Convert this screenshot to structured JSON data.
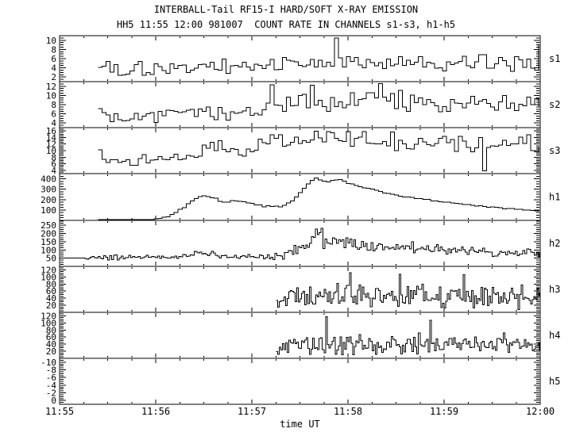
{
  "header": {
    "title": "INTERBALL-Tail RF15-I HARD/SOFT X-RAY EMISSION",
    "subtitle": "HH5 11:55 12:00 981007  COUNT RATE IN CHANNELS s1-s3, h1-h5"
  },
  "chart_data": {
    "type": "line",
    "title": "INTERBALL-Tail RF15-I HARD/SOFT X-RAY EMISSION",
    "subtitle": "HH5 11:55 12:00 981007  COUNT RATE IN CHANNELS s1-s3, h1-h5",
    "xlabel": "time UT",
    "x_tick_labels": [
      "11:55",
      "11:56",
      "11:57",
      "11:58",
      "11:59",
      "12:00"
    ],
    "x_range_seconds": [
      0,
      300
    ],
    "x_major_tick_s": 60,
    "x_minor_tick_s": 15,
    "grid": false,
    "line_color": "#000000",
    "background": "#ffffff",
    "panels": [
      {
        "label": "s1",
        "ylim": [
          1,
          11
        ],
        "ytick_values": [
          2,
          4,
          6,
          8,
          10
        ],
        "ytick_labels": [
          "2",
          "4",
          "6",
          "8",
          "10"
        ],
        "minor_step": 0.5,
        "seed": 101,
        "bin_s": 2.5,
        "start_s": 24,
        "mean_points": [
          [
            24,
            4.3
          ],
          [
            50,
            4.0
          ],
          [
            80,
            4.1
          ],
          [
            110,
            4.3
          ],
          [
            140,
            4.6
          ],
          [
            160,
            5.0
          ],
          [
            200,
            5.2
          ],
          [
            240,
            5.0
          ],
          [
            270,
            4.9
          ],
          [
            295,
            5.5
          ],
          [
            300,
            6.5
          ]
        ],
        "amp_points": [
          [
            24,
            1.5
          ],
          [
            150,
            1.6
          ],
          [
            300,
            1.8
          ]
        ],
        "spikes": [
          [
            172,
            10.5
          ],
          [
            298,
            9.0
          ]
        ]
      },
      {
        "label": "s2",
        "ylim": [
          3,
          13
        ],
        "ytick_values": [
          4,
          6,
          8,
          10,
          12
        ],
        "ytick_labels": [
          "4",
          "6",
          "8",
          "10",
          "12"
        ],
        "minor_step": 0.5,
        "seed": 202,
        "bin_s": 2.5,
        "start_s": 24,
        "mean_points": [
          [
            24,
            7.0
          ],
          [
            32,
            5.5
          ],
          [
            48,
            5.2
          ],
          [
            70,
            5.8
          ],
          [
            95,
            6.0
          ],
          [
            120,
            6.8
          ],
          [
            145,
            7.6
          ],
          [
            170,
            8.4
          ],
          [
            200,
            8.6
          ],
          [
            235,
            8.5
          ],
          [
            265,
            8.6
          ],
          [
            300,
            8.2
          ]
        ],
        "amp_points": [
          [
            24,
            1.3
          ],
          [
            120,
            1.6
          ],
          [
            160,
            1.9
          ],
          [
            300,
            1.9
          ]
        ],
        "spikes": [
          [
            132,
            12.3
          ],
          [
            156,
            12.2
          ],
          [
            198,
            12.6
          ]
        ]
      },
      {
        "label": "s3",
        "ylim": [
          3,
          17
        ],
        "ytick_values": [
          4,
          6,
          8,
          10,
          12,
          14,
          16
        ],
        "ytick_labels": [
          "4",
          "6",
          "8",
          "10",
          "12",
          "14",
          "16"
        ],
        "minor_step": 0.5,
        "seed": 303,
        "bin_s": 2.5,
        "start_s": 24,
        "mean_points": [
          [
            24,
            8.0
          ],
          [
            36,
            6.5
          ],
          [
            52,
            7.0
          ],
          [
            68,
            7.2
          ],
          [
            82,
            8.5
          ],
          [
            92,
            10.5
          ],
          [
            100,
            11.8
          ],
          [
            106,
            11.3
          ],
          [
            112,
            9.6
          ],
          [
            118,
            9.2
          ],
          [
            124,
            11.0
          ],
          [
            130,
            13.0
          ],
          [
            150,
            12.6
          ],
          [
            175,
            13.0
          ],
          [
            200,
            12.8
          ],
          [
            230,
            12.6
          ],
          [
            255,
            12.2
          ],
          [
            275,
            12.0
          ],
          [
            300,
            12.2
          ]
        ],
        "amp_points": [
          [
            24,
            2.2
          ],
          [
            88,
            1.8
          ],
          [
            112,
            2.0
          ],
          [
            128,
            2.4
          ],
          [
            300,
            2.6
          ]
        ],
        "spikes": [
          [
            265,
            3.8
          ]
        ]
      },
      {
        "label": "h1",
        "ylim": [
          0,
          450
        ],
        "ytick_values": [
          100,
          200,
          300,
          400
        ],
        "ytick_labels": [
          "100",
          "200",
          "300",
          "400"
        ],
        "minor_step": 25,
        "seed": 404,
        "bin_s": 2.5,
        "start_s": 24,
        "mean_points": [
          [
            24,
            3
          ],
          [
            50,
            4
          ],
          [
            55,
            6
          ],
          [
            60,
            15
          ],
          [
            65,
            30
          ],
          [
            70,
            60
          ],
          [
            75,
            110
          ],
          [
            80,
            170
          ],
          [
            83,
            205
          ],
          [
            86,
            228
          ],
          [
            90,
            235
          ],
          [
            95,
            215
          ],
          [
            100,
            185
          ],
          [
            103,
            180
          ],
          [
            107,
            190
          ],
          [
            111,
            190
          ],
          [
            116,
            170
          ],
          [
            121,
            150
          ],
          [
            126,
            140
          ],
          [
            131,
            135
          ],
          [
            136,
            135
          ],
          [
            139,
            145
          ],
          [
            142,
            165
          ],
          [
            145,
            200
          ],
          [
            148,
            245
          ],
          [
            151,
            295
          ],
          [
            154,
            345
          ],
          [
            156,
            380
          ],
          [
            158,
            408
          ],
          [
            161,
            398
          ],
          [
            164,
            375
          ],
          [
            167,
            363
          ],
          [
            170,
            383
          ],
          [
            173,
            390
          ],
          [
            176,
            372
          ],
          [
            180,
            350
          ],
          [
            185,
            332
          ],
          [
            190,
            312
          ],
          [
            195,
            292
          ],
          [
            200,
            272
          ],
          [
            205,
            256
          ],
          [
            210,
            242
          ],
          [
            216,
            228
          ],
          [
            223,
            212
          ],
          [
            230,
            196
          ],
          [
            238,
            180
          ],
          [
            245,
            166
          ],
          [
            252,
            155
          ],
          [
            260,
            141
          ],
          [
            268,
            128
          ],
          [
            275,
            118
          ],
          [
            282,
            108
          ],
          [
            288,
            100
          ],
          [
            294,
            92
          ],
          [
            300,
            85
          ]
        ],
        "amp_points": [
          [
            24,
            2
          ],
          [
            55,
            3
          ],
          [
            70,
            6
          ],
          [
            300,
            7
          ]
        ],
        "spikes": []
      },
      {
        "label": "h2",
        "ylim": [
          0,
          280
        ],
        "ytick_values": [
          50,
          100,
          150,
          200,
          250
        ],
        "ytick_labels": [
          "50",
          "100",
          "150",
          "200",
          "250"
        ],
        "minor_step": 12.5,
        "seed": 505,
        "bin_s": 1.2,
        "start_s": 0,
        "mean_points": [
          [
            0,
            50
          ],
          [
            16,
            50
          ],
          [
            20,
            53
          ],
          [
            70,
            55
          ],
          [
            76,
            66
          ],
          [
            82,
            78
          ],
          [
            88,
            80
          ],
          [
            94,
            74
          ],
          [
            100,
            62
          ],
          [
            108,
            57
          ],
          [
            132,
            57
          ],
          [
            138,
            66
          ],
          [
            143,
            85
          ],
          [
            148,
            112
          ],
          [
            152,
            138
          ],
          [
            156,
            158
          ],
          [
            160,
            166
          ],
          [
            165,
            160
          ],
          [
            170,
            151
          ],
          [
            176,
            142
          ],
          [
            182,
            132
          ],
          [
            190,
            122
          ],
          [
            200,
            116
          ],
          [
            214,
            111
          ],
          [
            228,
            106
          ],
          [
            244,
            96
          ],
          [
            258,
            89
          ],
          [
            272,
            84
          ],
          [
            286,
            80
          ],
          [
            300,
            78
          ]
        ],
        "amp_points": [
          [
            0,
            0
          ],
          [
            15,
            0
          ],
          [
            17,
            13
          ],
          [
            70,
            13
          ],
          [
            80,
            18
          ],
          [
            96,
            15
          ],
          [
            110,
            14
          ],
          [
            134,
            15
          ],
          [
            144,
            26
          ],
          [
            154,
            38
          ],
          [
            166,
            40
          ],
          [
            180,
            35
          ],
          [
            200,
            31
          ],
          [
            230,
            28
          ],
          [
            258,
            25
          ],
          [
            300,
            22
          ]
        ],
        "spikes": [
          [
            159,
            228
          ],
          [
            163,
            232
          ]
        ]
      },
      {
        "label": "h3",
        "ylim": [
          0,
          130
        ],
        "ytick_values": [
          20,
          40,
          60,
          80,
          100,
          120
        ],
        "ytick_labels": [
          "20",
          "40",
          "60",
          "80",
          "100",
          "120"
        ],
        "minor_step": 5,
        "seed": 606,
        "bin_s": 1.0,
        "start_s": 135,
        "mean_points": [
          [
            135,
            22
          ],
          [
            138,
            32
          ],
          [
            141,
            40
          ],
          [
            146,
            45
          ],
          [
            300,
            45
          ]
        ],
        "amp_points": [
          [
            135,
            14
          ],
          [
            141,
            24
          ],
          [
            147,
            28
          ],
          [
            300,
            28
          ]
        ],
        "spikes": [
          [
            181,
            112
          ],
          [
            212,
            108
          ],
          [
            252,
            106
          ]
        ]
      },
      {
        "label": "h4",
        "ylim": [
          0,
          130
        ],
        "ytick_values": [
          20,
          40,
          60,
          80,
          100,
          120
        ],
        "ytick_labels": [
          "20",
          "40",
          "60",
          "80",
          "100",
          "120"
        ],
        "minor_step": 5,
        "seed": 707,
        "bin_s": 1.0,
        "start_s": 135,
        "mean_points": [
          [
            135,
            18
          ],
          [
            139,
            28
          ],
          [
            143,
            36
          ],
          [
            148,
            40
          ],
          [
            300,
            40
          ]
        ],
        "amp_points": [
          [
            135,
            11
          ],
          [
            142,
            21
          ],
          [
            149,
            25
          ],
          [
            300,
            25
          ]
        ],
        "spikes": [
          [
            166,
            118
          ],
          [
            231,
            108
          ]
        ]
      },
      {
        "label": "h5",
        "ylim": [
          1,
          -11
        ],
        "ytick_values": [
          0,
          -2,
          -4,
          -6,
          -8,
          -10
        ],
        "ytick_labels": [
          "0",
          "-2",
          "-4",
          "-6",
          "-8",
          "-10"
        ],
        "minor_step": 0.5,
        "seed": 808,
        "bin_s": 2.5,
        "start_s": 0,
        "mean_points": [],
        "amp_points": [],
        "spikes": []
      }
    ]
  }
}
